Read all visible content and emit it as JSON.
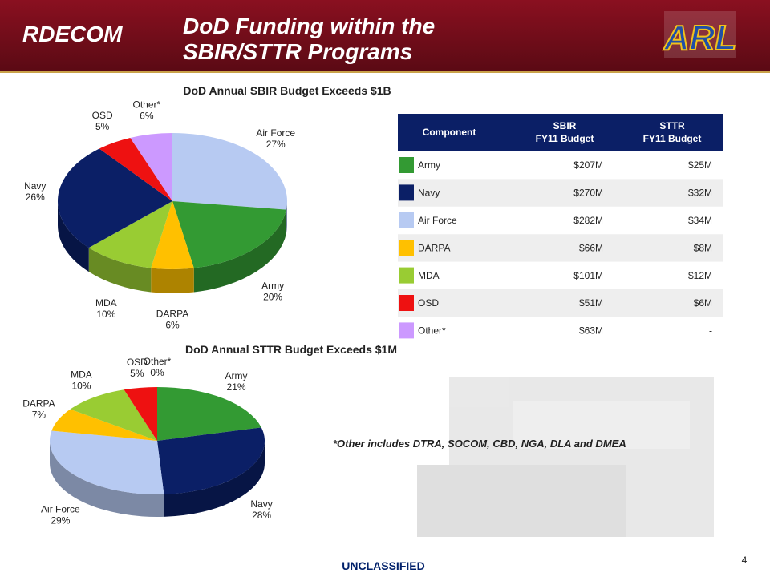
{
  "header": {
    "title_lines": [
      "DoD Funding within the",
      "SBIR/STTR Programs"
    ],
    "logo_left": "RDECOM",
    "logo_right": "ARL"
  },
  "chart_data": [
    {
      "type": "pie",
      "title": "DoD Annual SBIR Budget Exceeds $1B",
      "categories": [
        "Air Force",
        "Army",
        "DARPA",
        "MDA",
        "Navy",
        "OSD",
        "Other*"
      ],
      "values": [
        27,
        20,
        6,
        10,
        26,
        5,
        6
      ],
      "value_labels": [
        "27%",
        "20%",
        "6%",
        "10%",
        "26%",
        "5%",
        "6%"
      ],
      "colors": [
        "#b7caf2",
        "#339a33",
        "#ffc000",
        "#99cc33",
        "#0b1f66",
        "#ee1111",
        "#cc99ff"
      ]
    },
    {
      "type": "pie",
      "title": "DoD Annual STTR Budget Exceeds $1M",
      "categories": [
        "Army",
        "Navy",
        "Air Force",
        "DARPA",
        "MDA",
        "OSD",
        "Other*"
      ],
      "values": [
        21,
        28,
        29,
        7,
        10,
        5,
        0
      ],
      "value_labels": [
        "21%",
        "28%",
        "29%",
        "7%",
        "10%",
        "5%",
        "0%"
      ],
      "colors": [
        "#339a33",
        "#0b1f66",
        "#b7caf2",
        "#ffc000",
        "#99cc33",
        "#ee1111",
        "#cc99ff"
      ]
    }
  ],
  "table": {
    "header": [
      [
        "Component"
      ],
      [
        "SBIR",
        "FY11 Budget"
      ],
      [
        "STTR",
        "FY11 Budget"
      ]
    ],
    "swatch_colors": [
      "#339a33",
      "#0b1f66",
      "#b7caf2",
      "#ffc000",
      "#99cc33",
      "#ee1111",
      "#cc99ff"
    ],
    "rows": [
      [
        "Army",
        "$207M",
        "$25M"
      ],
      [
        "Navy",
        "$270M",
        "$32M"
      ],
      [
        "Air Force",
        "$282M",
        "$34M"
      ],
      [
        "DARPA",
        "$66M",
        "$8M"
      ],
      [
        "MDA",
        "$101M",
        "$12M"
      ],
      [
        "OSD",
        "$51M",
        "$6M"
      ],
      [
        "Other*",
        "$63M",
        "-"
      ]
    ]
  },
  "footnote": "*Other includes DTRA, SOCOM, CBD, NGA, DLA and DMEA",
  "footer": {
    "classification": "UNCLASSIFIED",
    "page": "4"
  }
}
